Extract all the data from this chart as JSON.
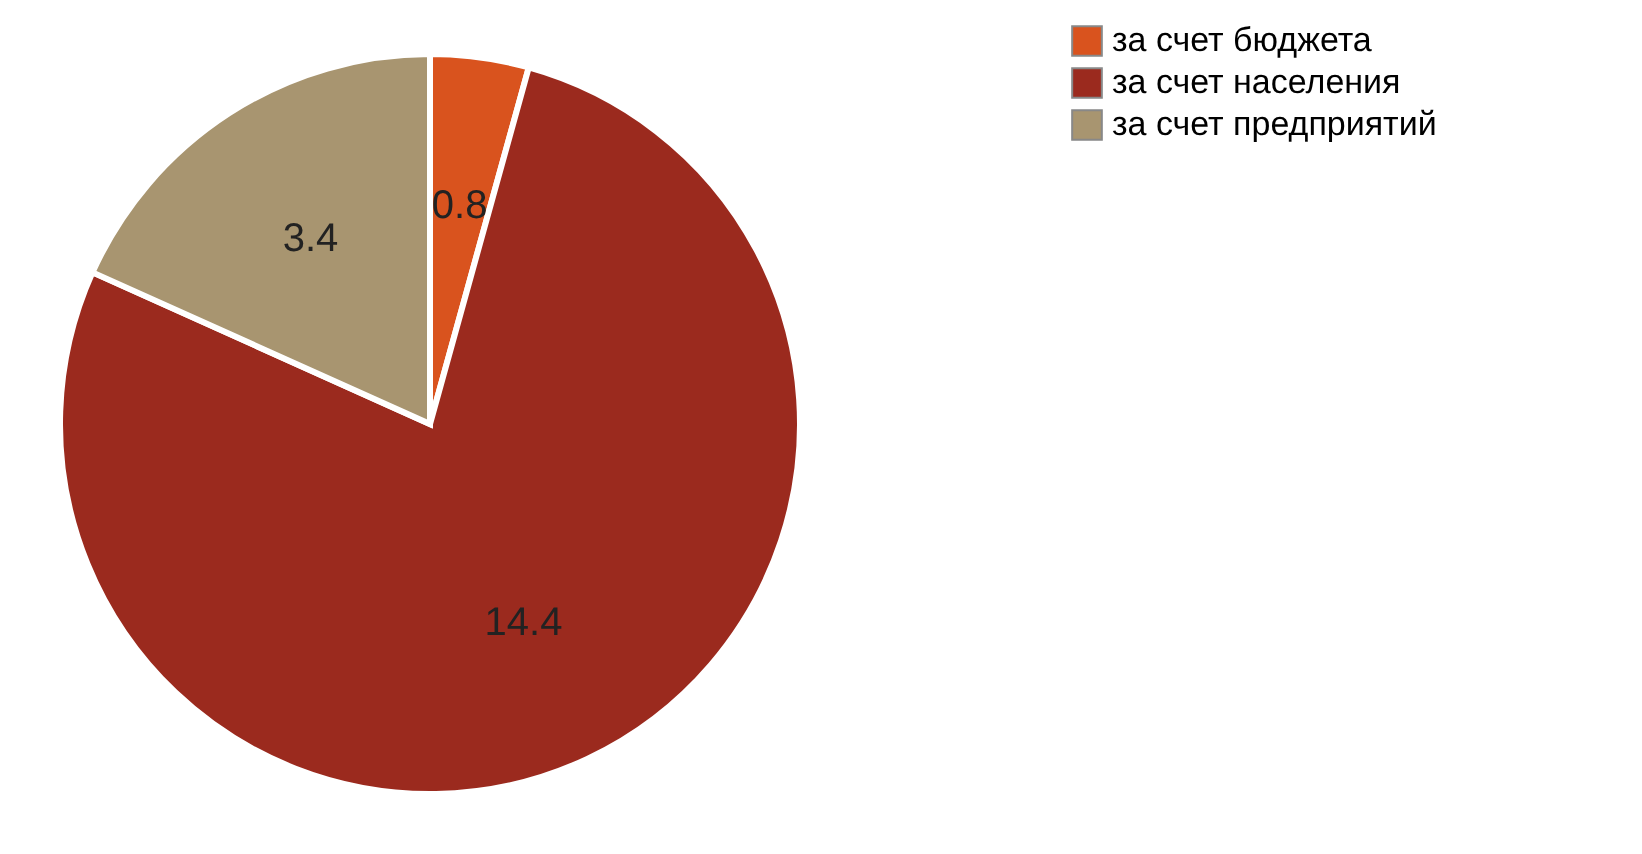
{
  "chart_data": {
    "type": "pie",
    "categories": [
      "за счет бюджета",
      "за счет населения",
      "за счет предприятий"
    ],
    "values": [
      0.8,
      14.4,
      3.4
    ],
    "colors": [
      "#d9531e",
      "#9b2a1e",
      "#a89570"
    ],
    "data_labels": true,
    "legend": "right"
  }
}
